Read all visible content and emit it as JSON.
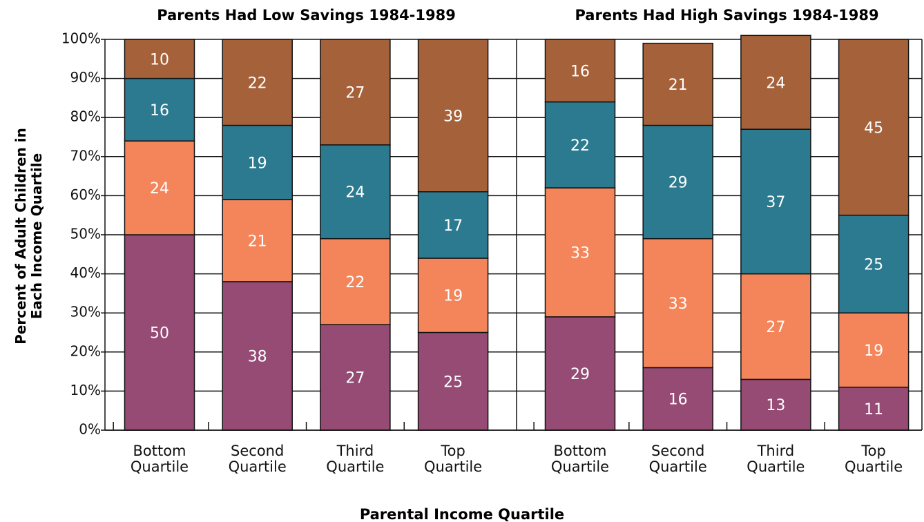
{
  "chart_data": {
    "type": "bar",
    "stacked": true,
    "ylabel": "Percent of Adult Children in Each Income Quartile",
    "xlabel": "Parental Income Quartile",
    "ylim": [
      0,
      100
    ],
    "yticks": [
      {
        "value": 0,
        "label": "0%"
      },
      {
        "value": 10,
        "label": "10%"
      },
      {
        "value": 20,
        "label": "20%"
      },
      {
        "value": 30,
        "label": "30%"
      },
      {
        "value": 40,
        "label": "40%"
      },
      {
        "value": 50,
        "label": "50%"
      },
      {
        "value": 60,
        "label": "60%"
      },
      {
        "value": 70,
        "label": "70%"
      },
      {
        "value": 80,
        "label": "80%"
      },
      {
        "value": 90,
        "label": "90%"
      },
      {
        "value": 100,
        "label": "100%"
      }
    ],
    "grid": true,
    "panels": [
      {
        "title": "Parents Had Low Savings 1984-1989",
        "categories": [
          "Bottom Quartile",
          "Second Quartile",
          "Third Quartile",
          "Top Quartile"
        ],
        "series": [
          {
            "color": "#954b74",
            "values": [
              50,
              38,
              27,
              25
            ]
          },
          {
            "color": "#f4855a",
            "values": [
              24,
              21,
              22,
              19
            ]
          },
          {
            "color": "#2b7a8f",
            "values": [
              16,
              19,
              24,
              17
            ]
          },
          {
            "color": "#a5613a",
            "values": [
              10,
              22,
              27,
              39
            ]
          }
        ]
      },
      {
        "title": "Parents Had High Savings 1984-1989",
        "categories": [
          "Bottom Quartile",
          "Second Quartile",
          "Third Quartile",
          "Top Quartile"
        ],
        "series": [
          {
            "color": "#954b74",
            "values": [
              29,
              16,
              13,
              11
            ]
          },
          {
            "color": "#f4855a",
            "values": [
              33,
              33,
              27,
              19
            ]
          },
          {
            "color": "#2b7a8f",
            "values": [
              22,
              29,
              37,
              25
            ]
          },
          {
            "color": "#a5613a",
            "values": [
              16,
              21,
              24,
              45
            ]
          }
        ]
      }
    ]
  }
}
